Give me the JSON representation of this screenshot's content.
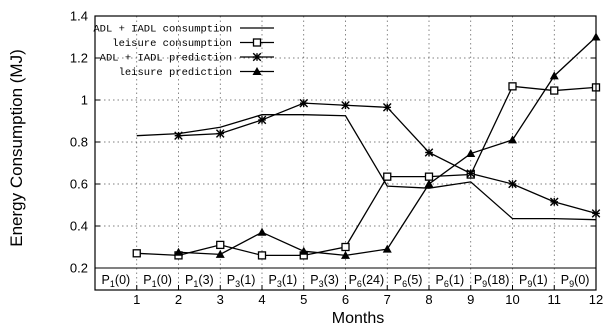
{
  "chart_data": {
    "type": "line",
    "xlabel": "Months",
    "ylabel": "Energy Consumption (MJ)",
    "xlim": [
      0,
      12
    ],
    "ylim": [
      0.2,
      1.4
    ],
    "x_ticks": [
      "1",
      "2",
      "3",
      "4",
      "5",
      "6",
      "7",
      "8",
      "9",
      "10",
      "11",
      "12"
    ],
    "y_ticks": [
      "0.2",
      "0.4",
      "0.6",
      "0.8",
      "1",
      "1.2",
      "1.4"
    ],
    "grid": true,
    "legend_position": "top-left",
    "series": [
      {
        "name": "ADL + IADL consumption",
        "marker": "none",
        "x": [
          1,
          2,
          3,
          4,
          5,
          6,
          7,
          8,
          9,
          10,
          11,
          12
        ],
        "y": [
          0.83,
          0.84,
          0.87,
          0.93,
          0.93,
          0.925,
          0.59,
          0.58,
          0.61,
          0.435,
          0.435,
          0.43
        ]
      },
      {
        "name": "leisure consumption",
        "marker": "square",
        "x": [
          1,
          2,
          3,
          4,
          5,
          6,
          7,
          8,
          9,
          10,
          11,
          12
        ],
        "y": [
          0.27,
          0.26,
          0.31,
          0.26,
          0.26,
          0.3,
          0.635,
          0.635,
          0.645,
          1.065,
          1.045,
          1.06
        ]
      },
      {
        "name": "ADL + IADL prediction",
        "marker": "star",
        "x": [
          2,
          3,
          4,
          5,
          6,
          7,
          8,
          9,
          10,
          11,
          12
        ],
        "y": [
          0.83,
          0.84,
          0.905,
          0.985,
          0.975,
          0.965,
          0.75,
          0.65,
          0.6,
          0.515,
          0.46
        ]
      },
      {
        "name": "leisure prediction",
        "marker": "triangle",
        "x": [
          2,
          3,
          4,
          5,
          6,
          7,
          8,
          9,
          10,
          11,
          12
        ],
        "y": [
          0.275,
          0.265,
          0.37,
          0.28,
          0.26,
          0.29,
          0.6,
          0.745,
          0.81,
          1.115,
          1.3
        ]
      }
    ],
    "period_labels": [
      {
        "base": "P",
        "sub": "1",
        "suffix": "(0)"
      },
      {
        "base": "P",
        "sub": "1",
        "suffix": "(0)"
      },
      {
        "base": "P",
        "sub": "1",
        "suffix": "(3)"
      },
      {
        "base": "P",
        "sub": "3",
        "suffix": "(1)"
      },
      {
        "base": "P",
        "sub": "3",
        "suffix": "(1)"
      },
      {
        "base": "P",
        "sub": "3",
        "suffix": "(3)"
      },
      {
        "base": "P",
        "sub": "6",
        "suffix": "(24)"
      },
      {
        "base": "P",
        "sub": "6",
        "suffix": "(5)"
      },
      {
        "base": "P",
        "sub": "6",
        "suffix": "(1)"
      },
      {
        "base": "P",
        "sub": "9",
        "suffix": "(18)"
      },
      {
        "base": "P",
        "sub": "9",
        "suffix": "(1)"
      },
      {
        "base": "P",
        "sub": "9",
        "suffix": "(0)"
      }
    ]
  }
}
